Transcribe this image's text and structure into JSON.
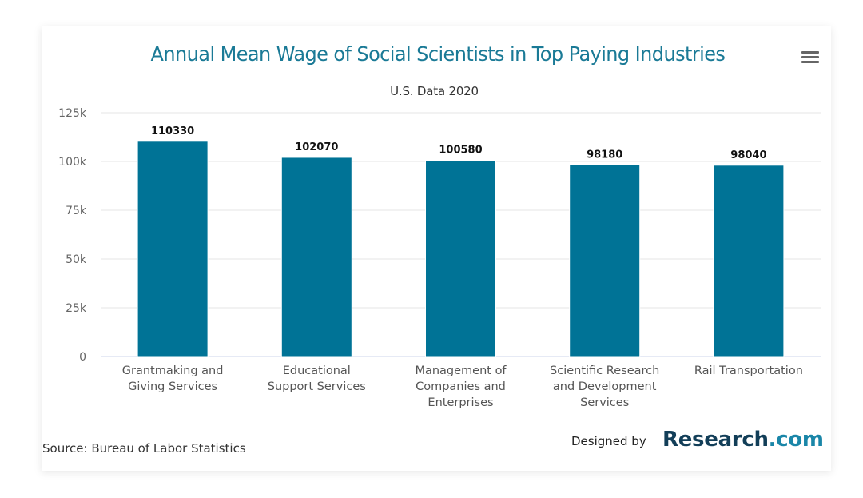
{
  "header": {
    "title": "Annual Mean Wage of Social Scientists in Top Paying Industries",
    "subtitle": "U.S. Data 2020",
    "menu_icon": "hamburger-menu-icon"
  },
  "footer": {
    "source": "Source: Bureau of Labor Statistics",
    "designed_by": "Designed by",
    "brand_main": "Research",
    "brand_suffix": ".com"
  },
  "colors": {
    "bar": "#007396",
    "title": "#1a7a96",
    "brand_dark": "#123e58",
    "brand_accent": "#1a86a8"
  },
  "chart_data": {
    "type": "bar",
    "title": "Annual Mean Wage of Social Scientists in Top Paying Industries",
    "subtitle": "U.S. Data 2020",
    "xlabel": "",
    "ylabel": "",
    "categories": [
      [
        "Grantmaking and",
        "Giving Services"
      ],
      [
        "Educational",
        "Support Services"
      ],
      [
        "Management of",
        "Companies and",
        "Enterprises"
      ],
      [
        "Scientific Research",
        "and Development",
        "Services"
      ],
      [
        "Rail Transportation"
      ]
    ],
    "values": [
      110330,
      102070,
      100580,
      98180,
      98040
    ],
    "data_labels": [
      "110330",
      "102070",
      "100580",
      "98180",
      "98040"
    ],
    "ylim": [
      0,
      125000
    ],
    "yticks": [
      0,
      25000,
      50000,
      75000,
      100000,
      125000
    ],
    "ytick_labels": [
      "0",
      "25k",
      "50k",
      "75k",
      "100k",
      "125k"
    ],
    "grid": true,
    "legend": "none"
  }
}
